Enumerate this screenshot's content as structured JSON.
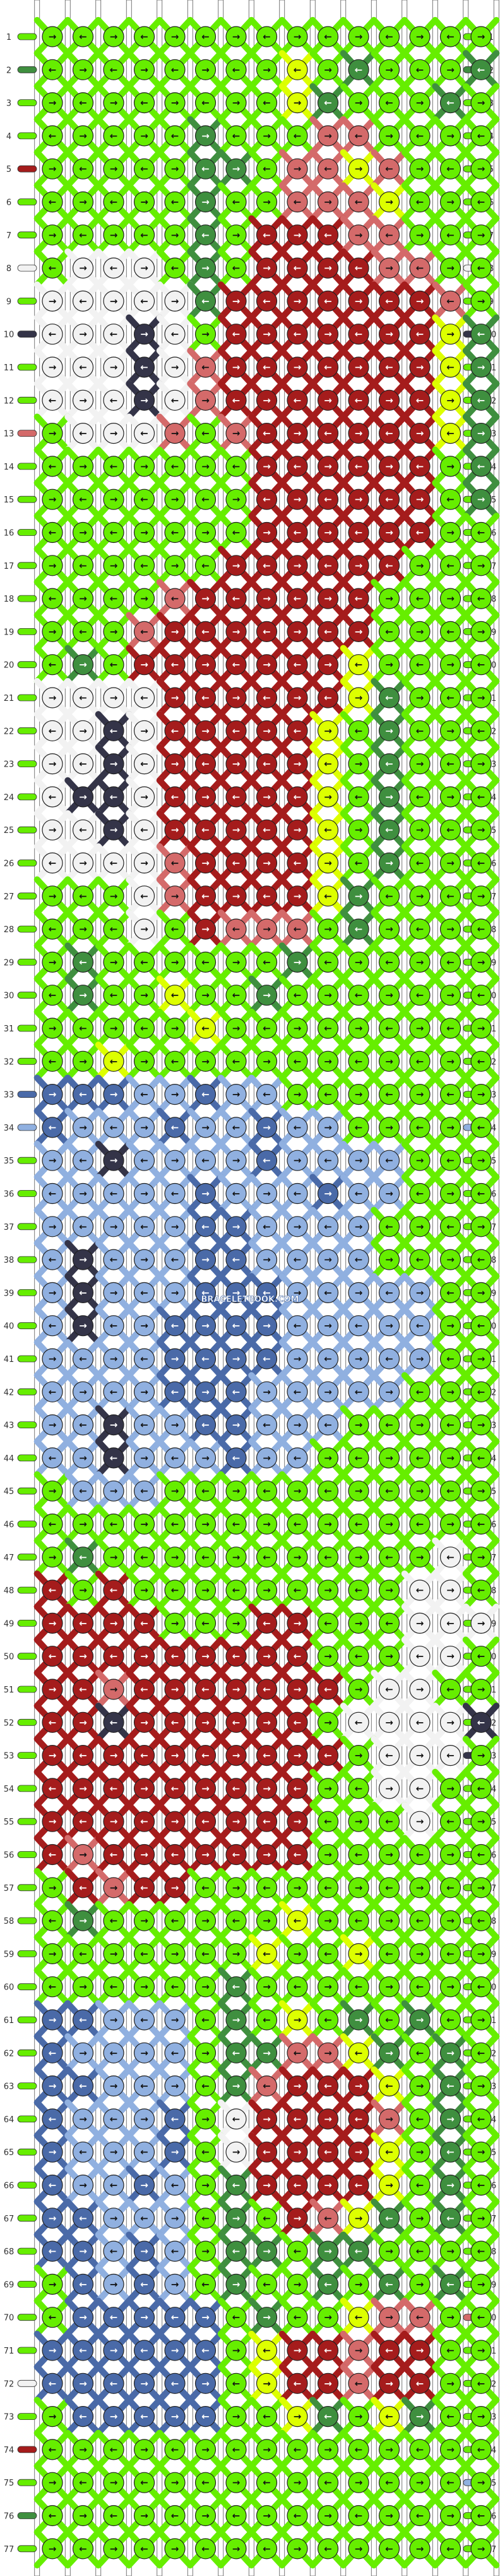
{
  "watermark": "BRACELETBOOK.COM",
  "pattern": {
    "type": "alpha",
    "strings": 15,
    "rows": 77,
    "colors": {
      "G": "#66ee00",
      "D": "#3f8f3f",
      "Y": "#ddff00",
      "R": "#a51c1c",
      "P": "#d46a6a",
      "W": "#f2f2f2",
      "K": "#343448",
      "B": "#90b0e0",
      "N": "#4a6aa8"
    },
    "string_colors_left": [
      "G",
      "D",
      "G",
      "G",
      "R",
      "G",
      "G",
      "W",
      "G",
      "K",
      "G",
      "G",
      "P",
      "G",
      "G",
      "G",
      "G",
      "G",
      "G",
      "G",
      "G",
      "G",
      "G",
      "G",
      "G",
      "G",
      "G",
      "G",
      "G",
      "G",
      "G",
      "G",
      "N",
      "B",
      "G",
      "G",
      "G",
      "G",
      "G",
      "G",
      "G",
      "G",
      "G",
      "G",
      "G",
      "G",
      "G",
      "G",
      "G",
      "G",
      "G",
      "G",
      "G",
      "G",
      "G",
      "G",
      "G",
      "G",
      "G",
      "G",
      "G",
      "G",
      "G",
      "G",
      "G",
      "G",
      "G",
      "G",
      "G",
      "G",
      "G",
      "W",
      "G",
      "R",
      "G",
      "D",
      "G"
    ],
    "string_colors_right": [
      "G",
      "D",
      "G",
      "G",
      "G",
      "G",
      "G",
      "W",
      "G",
      "K",
      "G",
      "G",
      "G",
      "G",
      "G",
      "G",
      "G",
      "G",
      "G",
      "G",
      "G",
      "G",
      "G",
      "G",
      "G",
      "G",
      "G",
      "G",
      "G",
      "G",
      "G",
      "G",
      "G",
      "B",
      "G",
      "G",
      "G",
      "G",
      "G",
      "G",
      "G",
      "G",
      "G",
      "G",
      "G",
      "G",
      "G",
      "G",
      "G",
      "G",
      "G",
      "G",
      "K",
      "G",
      "G",
      "G",
      "G",
      "G",
      "G",
      "G",
      "G",
      "G",
      "G",
      "G",
      "G",
      "G",
      "G",
      "G",
      "G",
      "P",
      "G",
      "G",
      "G",
      "G",
      "B",
      "G",
      "G"
    ],
    "grid": [
      "GGGGGGGGGGGGGGG",
      "GGGGGGGGYGDGGGD",
      "GGGGGGGGYDGGGDG",
      "GGGGGDGGGPPGGGG",
      "GGGGGDDGPPYPGGG",
      "GGGGGDGGPPPYGGG",
      "GGGGGDGRRRPPGGG",
      "GWWWGDGRRRRPPGG",
      "WWWWWDRRRRRRRPG",
      "WWWKWGRRRRRRRYD",
      "WWWKWPRRRRRRRYD",
      "WWWKWPRRRRRRRYD",
      "GWWWPGPRRRRRRYD",
      "GGGGGGGRRRRRRGD",
      "GGGGGGGRRRRRRGD",
      "GGGGGGGRRRRRRGG",
      "GGGGGGRRRRRRGGG",
      "GGGGPRRRRRRGGGG",
      "GGGPRRRRRRRGGGG",
      "GDGRRRRRRRYGGGG",
      "WWWWRRRRRRYDGGG",
      "WWKWRRRRRYGDGGG",
      "WWKWRRRRRYGDGGG",
      "WKKWRRRRRYGDGGG",
      "WWKWRRRRRYGDGGG",
      "WWWWPRRRRYGDGGG",
      "GGGWPRRRRYDGGGG",
      "GGGWGRPPPGDGGGG",
      "GDGGGGGGDGGGGGG",
      "GDGGYGGDGGGGGGG",
      "GGGGGYGGGGGGGGG",
      "GGYGGGGGGGGGGGG",
      "NNNBBNBBGGGGGGG",
      "NBBBNBBNBBGGGGG",
      "BBKBBBBNBBBBGGG",
      "BBBBBNBBBNBBGGG",
      "BBBBBNNBBBBGGGG",
      "BKBBBNNBBBBGGGG",
      "BKBBBNNNBBBBBGG",
      "BKBBNNNNBBBBBGG",
      "BBBBNNNNBBBBBGG",
      "BBBBNNNBBBBBGGG",
      "BBKBBNNBBBGGGGG",
      "BBKBBBNBBGGGGGG",
      "GBBBGGGGGGGGGGG",
      "GGGGGGGGGGGGGGG",
      "GDGGGGGGGGGGGWG",
      "RGRGGGGGGGGGWWG",
      "RRRRGGGRRGGGWWW",
      "RRRRRRRRRGGGWWG",
      "RRPRRRRRRRGWWGG",
      "RRKRRRRRRGWWWWK",
      "RRRRRRRRRRGWWWG",
      "RRRRRRRRRGGWWGG",
      "RRRRRRRRRGGGWGG",
      "RPRRRRRRRGGGGGG",
      "GRPRRGGGGGGGGGG",
      "GDGGGGGGYGGGGGG",
      "GGGGGGGYGGYGGGG",
      "GGGGGGDGGGGGGGG",
      "NNBBBGDGYGDGDGG",
      "NBBBBGDDPPYDGDG",
      "NNBBBGDPRRRYGDG",
      "NBBBNGWRRRRPGDG",
      "NBBBNGWRRRRYGDG",
      "NBBNBGDRRRRYGDG",
      "NNBBBGDGRPYDGDG",
      "NNBNBGDDGDDGGGG",
      "GNBNBGDGGDGDGDG",
      "GNNNNNGDGGYPPGG",
      "NNNNNNGYRRPRRGG",
      "NNNNNNGYRRPRRGG",
      "GNNNNNGGYDGYDGG",
      "GGGGGGGGGGGGGGG",
      "GGGGGGGGGGGGGGG",
      "GGGGGGGGGGGGGGG",
      "GGGGGGGGGGGGGGG"
    ]
  }
}
